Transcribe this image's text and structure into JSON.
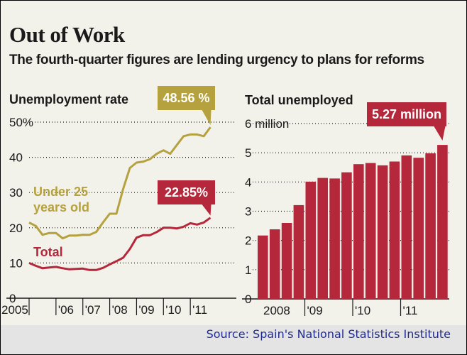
{
  "header": {
    "title": "Out of Work",
    "subtitle": "The fourth-quarter figures are lending urgency to plans for reforms"
  },
  "footer": {
    "source": "Source: Spain's National Statistics Institute"
  },
  "colors": {
    "gold": "#b5a23e",
    "red": "#b5273a",
    "background": "#f2f1ea"
  },
  "chart_data": [
    {
      "type": "line",
      "title": "Unemployment rate",
      "ylim": [
        0,
        50
      ],
      "yticks": [
        0,
        10,
        20,
        30,
        40,
        50
      ],
      "ytick_labels": [
        "0",
        "10",
        "20",
        "30",
        "40",
        "50%"
      ],
      "xlim": [
        2005,
        2012
      ],
      "xticks": [
        2005,
        2006,
        2007,
        2008,
        2009,
        2010,
        2011
      ],
      "xtick_labels": [
        "2005",
        "'06",
        "'07",
        "'08",
        "'09",
        "'10",
        "'11"
      ],
      "x": [
        2005.0,
        2005.25,
        2005.5,
        2005.75,
        2006.0,
        2006.25,
        2006.5,
        2006.75,
        2007.0,
        2007.25,
        2007.5,
        2007.75,
        2008.0,
        2008.25,
        2008.5,
        2008.75,
        2009.0,
        2009.25,
        2009.5,
        2009.75,
        2010.0,
        2010.25,
        2010.5,
        2010.75,
        2011.0,
        2011.25,
        2011.5,
        2011.75
      ],
      "series": [
        {
          "name": "Under 25 years old",
          "label_lines": [
            "Under 25",
            "years old"
          ],
          "color": "#b5a23e",
          "values": [
            21.5,
            20.5,
            18.0,
            18.5,
            18.5,
            17.0,
            17.8,
            17.8,
            18.0,
            18.0,
            18.8,
            21.5,
            24.0,
            24.0,
            31.0,
            37.0,
            38.5,
            38.8,
            39.5,
            41.0,
            42.0,
            41.0,
            43.5,
            46.0,
            46.5,
            46.5,
            46.0,
            48.56
          ]
        },
        {
          "name": "Total",
          "label_lines": [
            "Total"
          ],
          "color": "#b5273a",
          "values": [
            10.0,
            9.2,
            8.5,
            8.7,
            8.9,
            8.5,
            8.2,
            8.3,
            8.4,
            8.0,
            8.0,
            8.6,
            9.6,
            10.5,
            11.5,
            14.0,
            17.2,
            17.9,
            17.9,
            18.8,
            20.0,
            20.0,
            19.8,
            20.3,
            21.3,
            20.9,
            21.5,
            22.85
          ]
        }
      ],
      "annotations": [
        {
          "text": "48.56 %",
          "series": "Under 25 years old",
          "color": "#b5a23e"
        },
        {
          "text": "22.85%",
          "series": "Total",
          "color": "#b5273a"
        }
      ]
    },
    {
      "type": "bar",
      "title": "Total unemployed",
      "ylim": [
        0,
        6
      ],
      "yticks": [
        0,
        1,
        2,
        3,
        4,
        5,
        6
      ],
      "ytick_labels": [
        "0",
        "1",
        "2",
        "3",
        "4",
        "5",
        "6 million"
      ],
      "xtick_labels": [
        "2008",
        "'09",
        "'10",
        "'11"
      ],
      "xtick_positions": [
        0,
        4,
        8,
        12
      ],
      "values": [
        2.17,
        2.38,
        2.6,
        3.21,
        4.01,
        4.14,
        4.12,
        4.33,
        4.61,
        4.65,
        4.57,
        4.7,
        4.91,
        4.83,
        4.98,
        5.27
      ],
      "color": "#b5273a",
      "annotations": [
        {
          "text": "5.27 million",
          "index": 15,
          "color": "#b5273a"
        }
      ]
    }
  ]
}
